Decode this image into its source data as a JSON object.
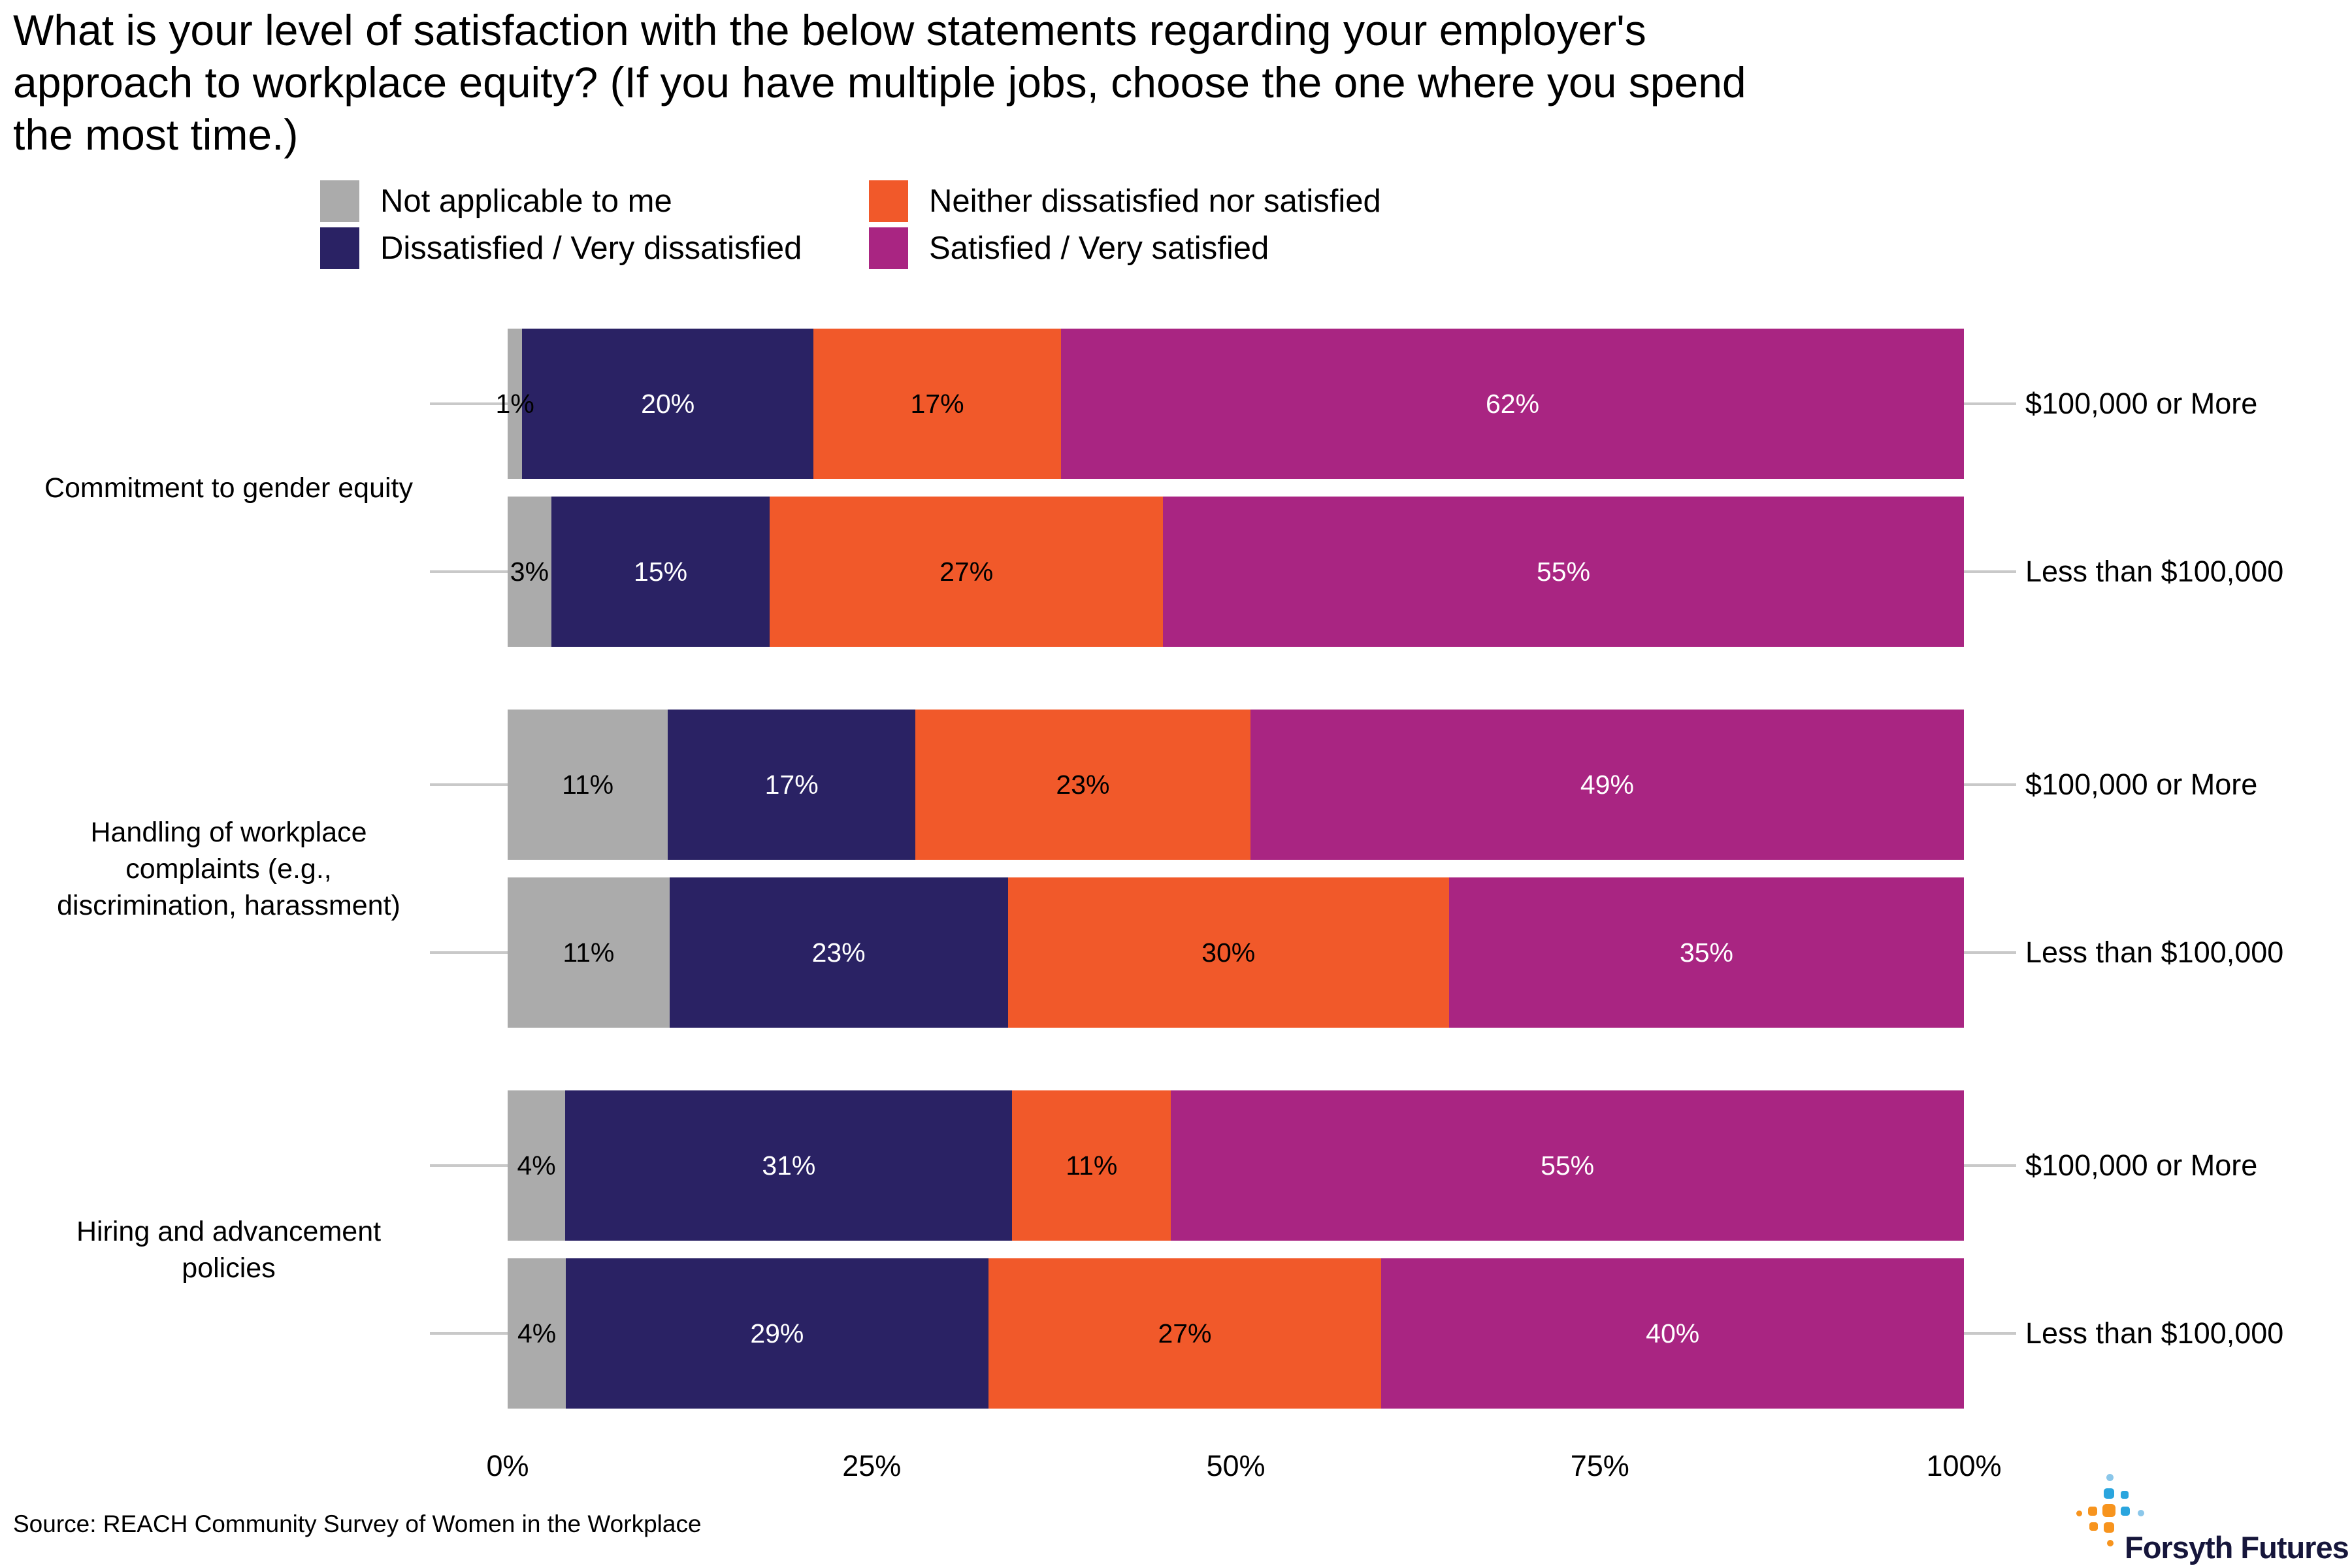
{
  "title": "What is your level of satisfaction with the below statements regarding your employer's approach to workplace equity? (If you have multiple jobs, choose the one where you spend the most time.)",
  "title_lines": [
    "What is your level of satisfaction with the below statements regarding your employer's",
    "approach to workplace equity? (If you have multiple jobs, choose the one where you spend",
    "the most time.)"
  ],
  "chart_data": {
    "type": "bar",
    "orientation": "horizontal",
    "stacked": true,
    "value_unit": "percent",
    "grid": false,
    "legend_position": "top",
    "xlim": [
      0,
      100
    ],
    "x_ticks": [
      0,
      25,
      50,
      75,
      100
    ],
    "x_tick_labels": [
      "0%",
      "25%",
      "50%",
      "75%",
      "100%"
    ],
    "series": [
      {
        "name": "Not applicable to me",
        "color": "#ABABAB",
        "label_color": "#000000"
      },
      {
        "name": "Dissatisfied / Very dissatisfied",
        "color": "#2A2264",
        "label_color": "#FFFFFF"
      },
      {
        "name": "Neither dissatisfied nor satisfied",
        "color": "#F1592A",
        "label_color": "#000000"
      },
      {
        "name": "Satisfied / Very satisfied",
        "color": "#A92582",
        "label_color": "#FFFFFF"
      }
    ],
    "groups": [
      {
        "label": "Commitment to gender equity",
        "label_lines": [
          "Commitment to gender equity"
        ],
        "rows": [
          {
            "label": "$100,000 or More",
            "values": [
              1,
              20,
              17,
              62
            ],
            "value_labels": [
              "1%",
              "20%",
              "17%",
              "62%"
            ]
          },
          {
            "label": "Less than $100,000",
            "values": [
              3,
              15,
              27,
              55
            ],
            "value_labels": [
              "3%",
              "15%",
              "27%",
              "55%"
            ]
          }
        ]
      },
      {
        "label": "Handling of workplace complaints (e.g., discrimination, harassment)",
        "label_lines": [
          "Handling of workplace",
          "complaints (e.g.,",
          "discrimination, harassment)"
        ],
        "rows": [
          {
            "label": "$100,000 or More",
            "values": [
              11,
              17,
              23,
              49
            ],
            "value_labels": [
              "11%",
              "17%",
              "23%",
              "49%"
            ]
          },
          {
            "label": "Less than $100,000",
            "values": [
              11,
              23,
              30,
              35
            ],
            "value_labels": [
              "11%",
              "23%",
              "30%",
              "35%"
            ]
          }
        ]
      },
      {
        "label": "Hiring and advancement policies",
        "label_lines": [
          "Hiring and advancement",
          "policies"
        ],
        "rows": [
          {
            "label": "$100,000 or More",
            "values": [
              4,
              31,
              11,
              55
            ],
            "value_labels": [
              "4%",
              "31%",
              "11%",
              "55%"
            ]
          },
          {
            "label": "Less than $100,000",
            "values": [
              4,
              29,
              27,
              40
            ],
            "value_labels": [
              "4%",
              "29%",
              "27%",
              "40%"
            ]
          }
        ]
      }
    ]
  },
  "source": "Source: REACH Community Survey of Women in the Workplace",
  "logo": {
    "text": "Forsyth Futures",
    "colors": {
      "orange": "#F7941E",
      "blue": "#2AA5DE",
      "light_blue": "#8BC7EA",
      "text_color": "#16163B"
    }
  }
}
